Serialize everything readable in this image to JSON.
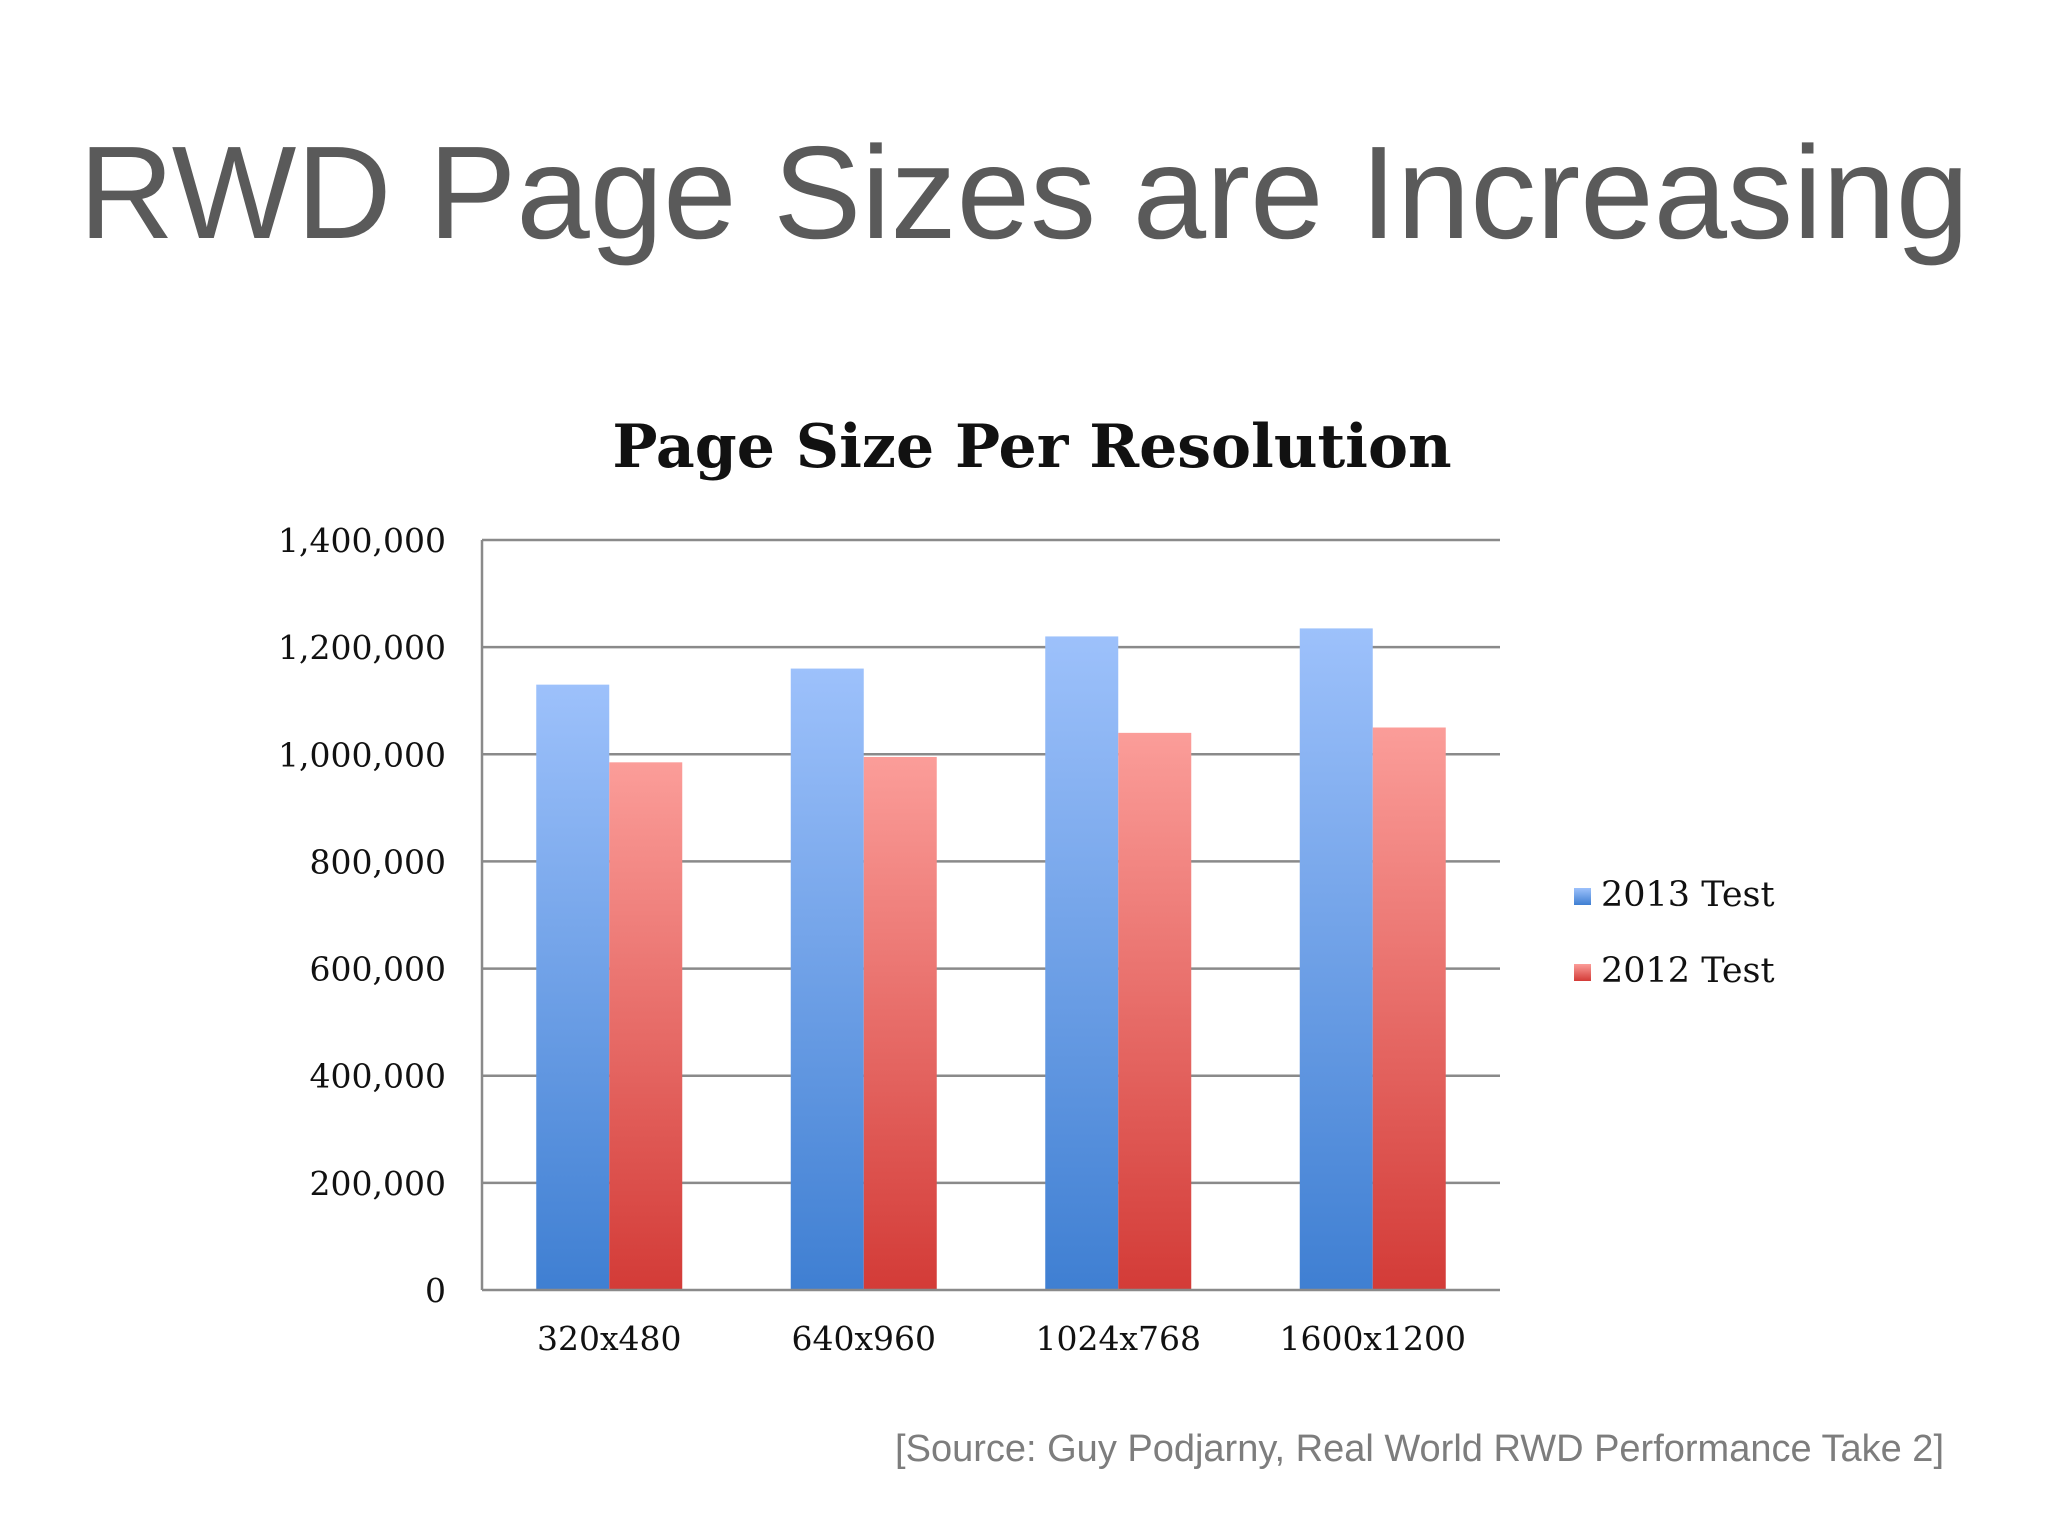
{
  "slide": {
    "title": "RWD Page Sizes are Increasing",
    "source": "[Source: Guy Podjarny, Real World RWD Performance Take 2]"
  },
  "chart_data": {
    "type": "bar",
    "title": "Page Size Per Resolution",
    "xlabel": "",
    "ylabel": "",
    "categories": [
      "320x480",
      "640x960",
      "1024x768",
      "1600x1200"
    ],
    "series": [
      {
        "name": "2013 Test",
        "values": [
          1130000,
          1160000,
          1220000,
          1235000
        ],
        "color": "#4a86d4"
      },
      {
        "name": "2012 Test",
        "values": [
          985000,
          995000,
          1040000,
          1050000
        ],
        "color": "#d9433f"
      }
    ],
    "ylim": [
      0,
      1400000
    ],
    "yticks": [
      0,
      200000,
      400000,
      600000,
      800000,
      1000000,
      1200000,
      1400000
    ],
    "ytick_labels": [
      "0",
      "200,000",
      "400,000",
      "600,000",
      "800,000",
      "1,000,000",
      "1,200,000",
      "1,400,000"
    ],
    "grid": true,
    "legend_position": "right"
  }
}
